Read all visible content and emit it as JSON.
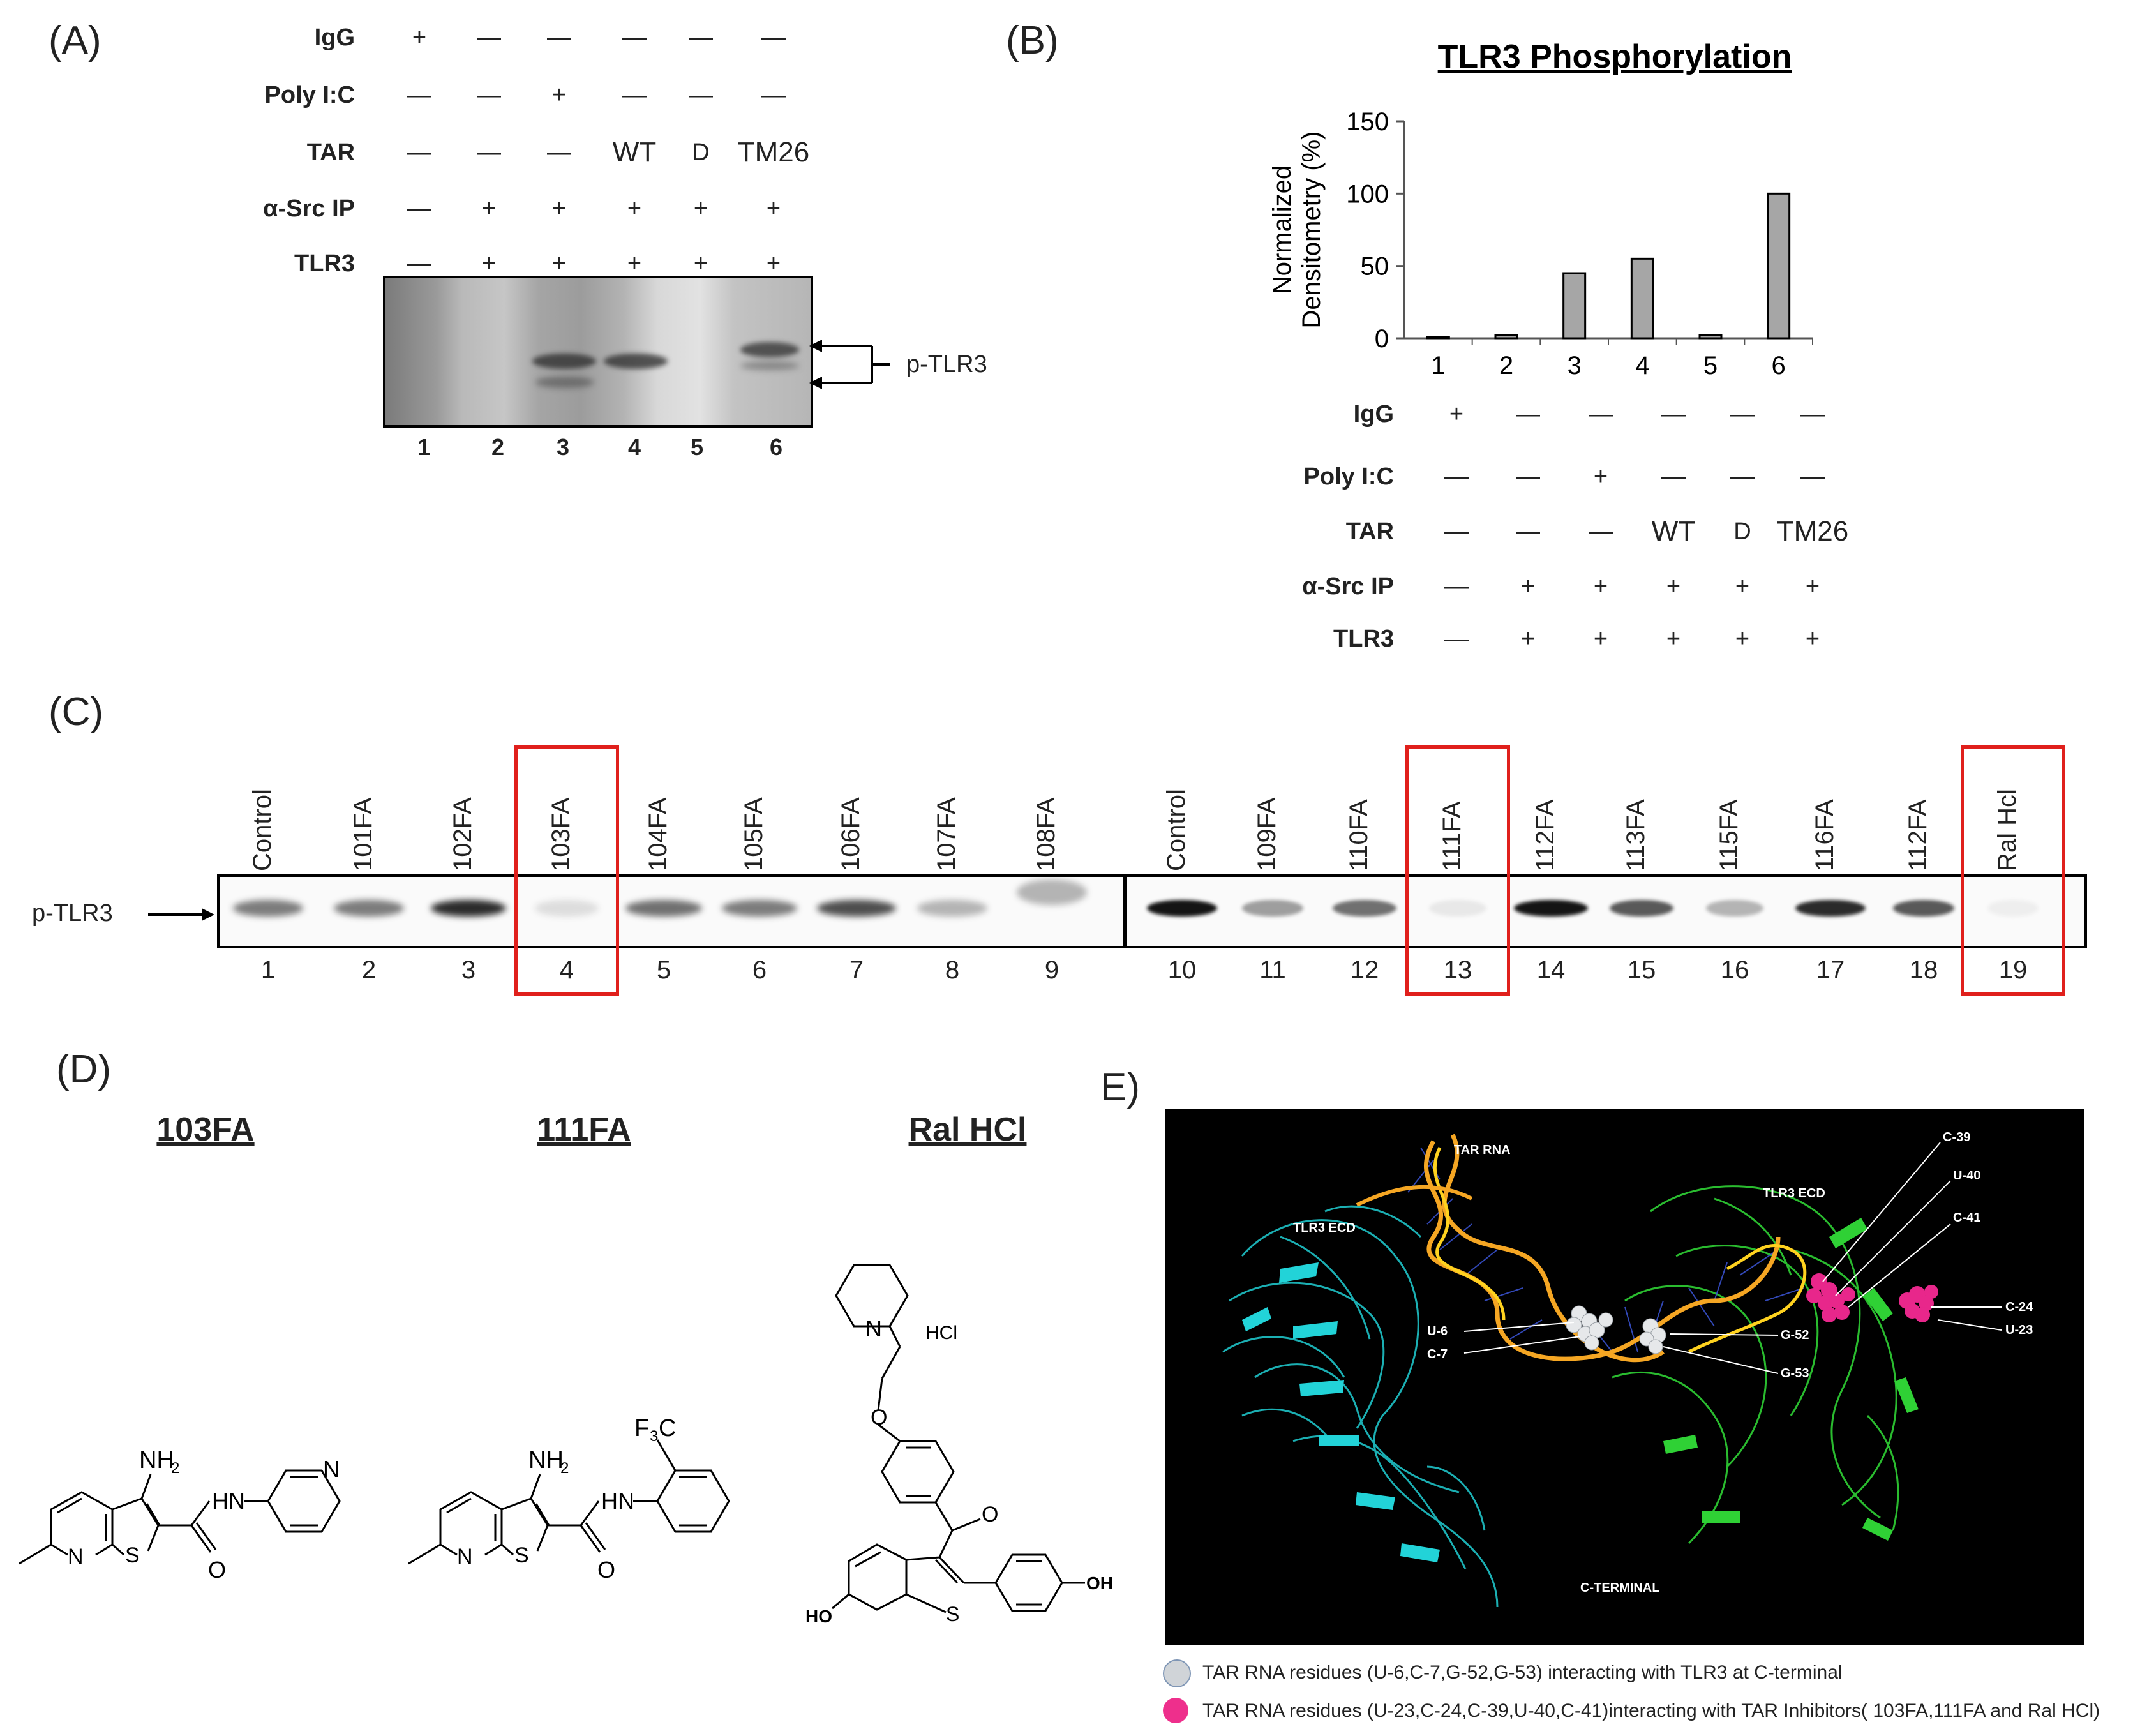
{
  "panel_labels": {
    "a": "(A)",
    "b": "(B)",
    "c": "(C)",
    "d": "(D)",
    "e": "E)"
  },
  "panel_a": {
    "conditions": [
      {
        "label": "IgG",
        "values": [
          "+",
          "—",
          "—",
          "—",
          "—",
          "—"
        ]
      },
      {
        "label": "Poly I:C",
        "values": [
          "—",
          "—",
          "+",
          "—",
          "—",
          "—"
        ]
      },
      {
        "label": "TAR",
        "values": [
          "—",
          "—",
          "—",
          "WT",
          "D",
          "TM26"
        ]
      },
      {
        "label": "α-Src IP",
        "values": [
          "—",
          "+",
          "+",
          "+",
          "+",
          "+"
        ]
      },
      {
        "label": "TLR3",
        "values": [
          "—",
          "+",
          "+",
          "+",
          "+",
          "+"
        ]
      }
    ],
    "lanes": [
      "1",
      "2",
      "3",
      "4",
      "5",
      "6"
    ],
    "band_label": "p-TLR3"
  },
  "panel_b": {
    "conditions": [
      {
        "label": "IgG",
        "values": [
          "+",
          "—",
          "—",
          "—",
          "—",
          "—"
        ]
      },
      {
        "label": "Poly I:C",
        "values": [
          "—",
          "—",
          "+",
          "—",
          "—",
          "—"
        ]
      },
      {
        "label": "TAR",
        "values": [
          "—",
          "—",
          "—",
          "WT",
          "D",
          "TM26"
        ]
      },
      {
        "label": "α-Src IP",
        "values": [
          "—",
          "+",
          "+",
          "+",
          "+",
          "+"
        ]
      },
      {
        "label": "TLR3",
        "values": [
          "—",
          "+",
          "+",
          "+",
          "+",
          "+"
        ]
      }
    ]
  },
  "chart_data": {
    "type": "bar",
    "title": "TLR3 Phosphorylation",
    "ylabel": "Normalized Densitometry (%)",
    "ylabel_lines": [
      "Normalized",
      "Densitometry (%)"
    ],
    "xlabel": "",
    "categories": [
      "1",
      "2",
      "3",
      "4",
      "5",
      "6"
    ],
    "values": [
      1,
      2,
      45,
      55,
      2,
      100
    ],
    "ylim": [
      0,
      150
    ],
    "yticks": [
      0,
      50,
      100,
      150
    ],
    "bar_color": "#a6a6a6",
    "grid": false
  },
  "panel_c": {
    "band_label": "p-TLR3",
    "samples": [
      "Control",
      "101FA",
      "102FA",
      "103FA",
      "104FA",
      "105FA",
      "106FA",
      "107FA",
      "108FA",
      "Control",
      "109FA",
      "110FA",
      "111FA",
      "112FA",
      "113FA",
      "115FA",
      "116FA",
      "112FA",
      "Ral Hcl"
    ],
    "lanes": [
      "1",
      "2",
      "3",
      "4",
      "5",
      "6",
      "7",
      "8",
      "9",
      "10",
      "11",
      "12",
      "13",
      "14",
      "15",
      "16",
      "17",
      "18",
      "19"
    ],
    "highlighted_lanes": [
      "4",
      "13",
      "19"
    ],
    "highlight_color": "#e0201c"
  },
  "panel_d": {
    "compounds": [
      {
        "name": "103FA",
        "atoms": {
          "nh2": "NH",
          "nh2_sub": "2",
          "hn": "HN",
          "n_ring": "N",
          "s": "S",
          "o": "O",
          "n_pyr": "N"
        }
      },
      {
        "name": "111FA",
        "atoms": {
          "nh2": "NH",
          "nh2_sub": "2",
          "hn": "HN",
          "n_ring": "N",
          "s": "S",
          "o": "O",
          "cf3_f": "F",
          "cf3_sub": "3",
          "cf3_c": "C"
        }
      },
      {
        "name": "Ral HCl",
        "atoms": {
          "n": "N",
          "hcl": "HCl",
          "o_ether": "O",
          "o_ketone": "O",
          "s": "S",
          "ho": "HO",
          "oh": "OH"
        }
      }
    ]
  },
  "panel_e": {
    "structure_labels": {
      "tar_rna": "TAR RNA",
      "tlr3_ecd_left": "TLR3 ECD",
      "tlr3_ecd_right": "TLR3 ECD",
      "c_terminal": "C-TERMINAL"
    },
    "residue_labels": [
      "C-39",
      "U-40",
      "C-41",
      "C-24",
      "U-23",
      "G-52",
      "G-53",
      "U-6",
      "C-7"
    ],
    "legend": [
      {
        "color": "#d0d4d8",
        "text": "TAR RNA residues (U-6,C-7,G-52,G-53)  interacting with TLR3 at C-terminal"
      },
      {
        "color": "#ee2f8c",
        "text": "TAR RNA residues (U-23,C-24,C-39,U-40,C-41)interacting  with TAR Inhibitors( 103FA,111FA and Ral HCl)"
      }
    ]
  }
}
